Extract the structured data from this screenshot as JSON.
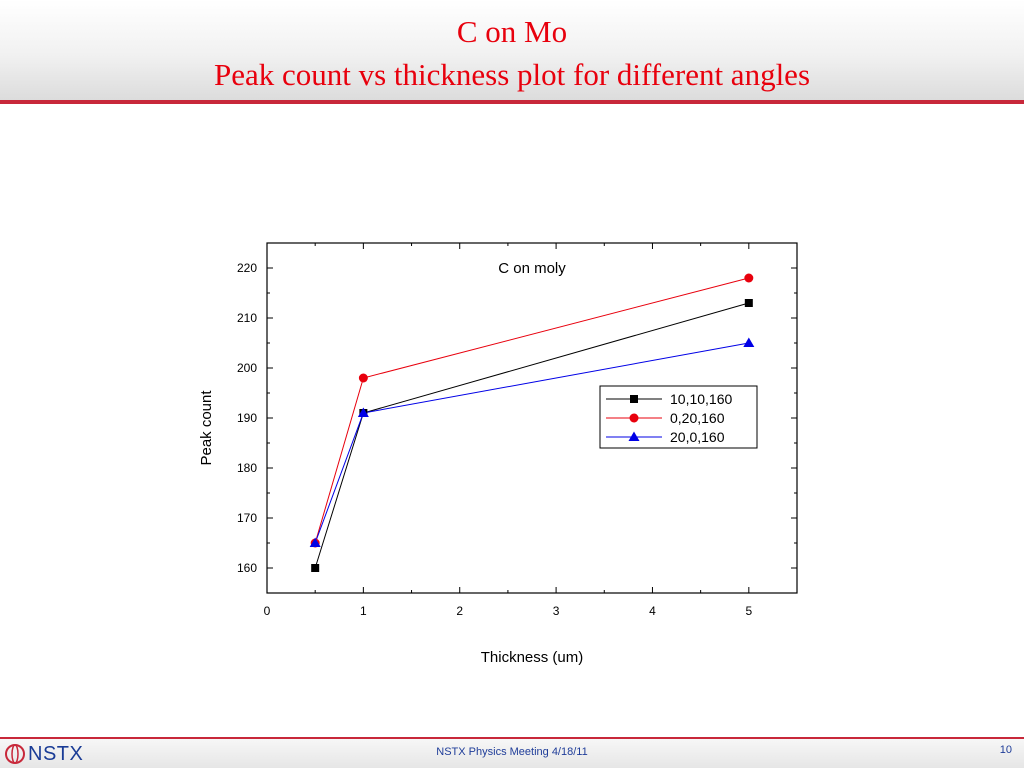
{
  "slide": {
    "title_line1": "C on Mo",
    "title_line2": "Peak count vs thickness plot for different angles"
  },
  "footer": {
    "logo_text": "NSTX",
    "center_text": "NSTX Physics Meeting 4/18/11",
    "page_number": "10"
  },
  "colors": {
    "title": "#e8000d",
    "rule": "#c8283a",
    "footer_text": "#1f3d99"
  },
  "chart_data": {
    "type": "line",
    "title": "C on moly",
    "xlabel": "Thickness (um)",
    "ylabel": "Peak count",
    "xlim": [
      0,
      5.5
    ],
    "ylim": [
      155,
      225
    ],
    "xticks": [
      0,
      1,
      2,
      3,
      4,
      5
    ],
    "yticks": [
      160,
      170,
      180,
      190,
      200,
      210,
      220
    ],
    "grid": false,
    "legend_position": "right-middle",
    "series": [
      {
        "name": "10,10,160",
        "color": "#000000",
        "marker": "square",
        "x": [
          0.5,
          1,
          5
        ],
        "y": [
          160,
          191,
          213
        ]
      },
      {
        "name": "0,20,160",
        "color": "#e8000d",
        "marker": "circle",
        "x": [
          0.5,
          1,
          5
        ],
        "y": [
          165,
          198,
          218
        ]
      },
      {
        "name": "20,0,160",
        "color": "#0000e6",
        "marker": "triangle",
        "x": [
          0.5,
          1,
          5
        ],
        "y": [
          165,
          191,
          205
        ]
      }
    ]
  }
}
